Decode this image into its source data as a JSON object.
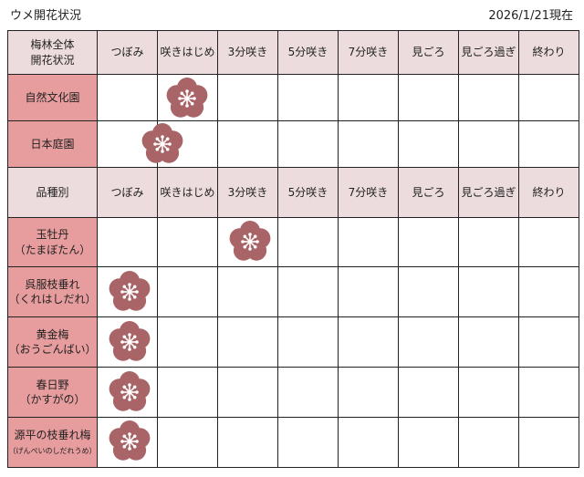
{
  "title": "ウメ開花状況",
  "date": "2026/1/21現在",
  "stages": [
    "つぼみ",
    "咲きはじめ",
    "3分咲き",
    "5分咲き",
    "7分咲き",
    "見ごろ",
    "見ごろ過ぎ",
    "終わり"
  ],
  "overall": {
    "header": [
      "梅林全体",
      "開花状況"
    ],
    "rows": [
      {
        "name": "自然文化園",
        "stage": "咲きはじめ"
      },
      {
        "name": "日本庭園",
        "stage": "つぼみ〜咲きはじめ"
      }
    ]
  },
  "varieties": {
    "header": "品種別",
    "rows": [
      {
        "name": "玉牡丹",
        "reading": "（たまぼたん）",
        "stage": "3分咲き"
      },
      {
        "name": "呉服枝垂れ",
        "reading": "（くれはしだれ）",
        "stage": "つぼみ"
      },
      {
        "name": "黄金梅",
        "reading": "（おうごんばい）",
        "stage": "つぼみ"
      },
      {
        "name": "春日野",
        "reading": "（かすがの）",
        "stage": "つぼみ"
      },
      {
        "name": "源平の枝垂れ梅",
        "reading": "（げんぺいのしだれうめ）",
        "stage": "つぼみ"
      }
    ]
  },
  "colors": {
    "header": "#ecdcdd",
    "label": "#e79c9d",
    "flower": "#a86466"
  },
  "icon": "plum-blossom-icon"
}
